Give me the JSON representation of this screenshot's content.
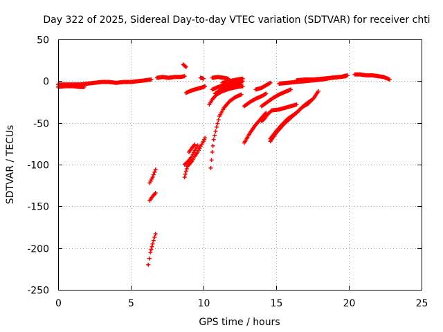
{
  "chart_data": {
    "type": "scatter",
    "title": "Day 322 of 2025, Sidereal Day-to-day VTEC variation (SDTVAR) for receiver chti",
    "xlabel": "GPS time / hours",
    "ylabel": "SDTVAR / TECUs",
    "xlim": [
      0,
      25
    ],
    "ylim": [
      -250,
      50
    ],
    "xticks": [
      0,
      5,
      10,
      15,
      20,
      25
    ],
    "yticks": [
      50,
      0,
      -50,
      -100,
      -150,
      -200,
      -250
    ],
    "grid": true,
    "marker": "+",
    "color": "#ff0000",
    "segments": [
      {
        "points": [
          [
            0.0,
            -4
          ],
          [
            0.5,
            -4
          ],
          [
            1.0,
            -4
          ],
          [
            1.5,
            -4
          ],
          [
            2.0,
            -3
          ],
          [
            2.5,
            -2
          ],
          [
            3.0,
            -1
          ],
          [
            3.5,
            -1
          ],
          [
            4.0,
            -2
          ],
          [
            4.5,
            -1
          ],
          [
            5.0,
            -1
          ],
          [
            5.5,
            0
          ],
          [
            6.0,
            1
          ],
          [
            6.4,
            2
          ]
        ]
      },
      {
        "points": [
          [
            0.0,
            -7
          ],
          [
            0.5,
            -6
          ],
          [
            1.0,
            -6
          ],
          [
            1.5,
            -7
          ],
          [
            1.8,
            -7
          ]
        ]
      },
      {
        "points": [
          [
            6.8,
            4
          ],
          [
            7.2,
            5
          ],
          [
            7.6,
            4
          ],
          [
            8.0,
            5
          ],
          [
            8.4,
            5
          ],
          [
            8.7,
            6
          ]
        ]
      },
      {
        "points": [
          [
            8.6,
            20
          ],
          [
            8.8,
            17
          ]
        ]
      },
      {
        "points": [
          [
            8.8,
            -14
          ],
          [
            9.2,
            -11
          ],
          [
            9.6,
            -9
          ],
          [
            10.0,
            -7
          ],
          [
            10.1,
            -6
          ]
        ]
      },
      {
        "points": [
          [
            9.8,
            4
          ],
          [
            10.0,
            3
          ]
        ]
      },
      {
        "points": [
          [
            10.6,
            4
          ],
          [
            11.0,
            5
          ],
          [
            11.4,
            4
          ],
          [
            11.7,
            3
          ]
        ]
      },
      {
        "points": [
          [
            10.5,
            -104
          ],
          [
            10.6,
            -85
          ],
          [
            10.7,
            -70
          ],
          [
            10.9,
            -55
          ],
          [
            11.1,
            -42
          ],
          [
            11.4,
            -32
          ],
          [
            11.8,
            -24
          ],
          [
            12.2,
            -19
          ],
          [
            12.6,
            -16
          ]
        ]
      },
      {
        "points": [
          [
            10.4,
            -28
          ],
          [
            10.6,
            -22
          ],
          [
            10.9,
            -16
          ],
          [
            11.3,
            -12
          ],
          [
            11.8,
            -9
          ],
          [
            12.3,
            -7
          ],
          [
            12.7,
            -6
          ]
        ]
      },
      {
        "points": [
          [
            10.8,
            -15
          ],
          [
            11.2,
            -10
          ],
          [
            11.7,
            -6
          ],
          [
            12.2,
            -3
          ],
          [
            12.6,
            -2
          ]
        ]
      },
      {
        "points": [
          [
            10.6,
            -10
          ],
          [
            11.0,
            -7
          ],
          [
            11.5,
            -4
          ],
          [
            12.0,
            -2
          ],
          [
            12.7,
            0
          ]
        ]
      },
      {
        "points": [
          [
            11.3,
            -2
          ],
          [
            11.8,
            0
          ],
          [
            12.3,
            2
          ],
          [
            12.7,
            3
          ]
        ]
      },
      {
        "points": [
          [
            12.8,
            -74
          ],
          [
            13.2,
            -62
          ],
          [
            13.6,
            -52
          ],
          [
            14.0,
            -44
          ],
          [
            14.3,
            -38
          ]
        ]
      },
      {
        "points": [
          [
            12.8,
            -30
          ],
          [
            13.2,
            -25
          ],
          [
            13.6,
            -21
          ],
          [
            14.0,
            -18
          ],
          [
            14.3,
            -15
          ]
        ]
      },
      {
        "points": [
          [
            13.6,
            -10
          ],
          [
            14.0,
            -8
          ],
          [
            14.4,
            -4
          ],
          [
            14.6,
            -2
          ]
        ]
      },
      {
        "points": [
          [
            14.0,
            -30
          ],
          [
            14.4,
            -25
          ],
          [
            14.8,
            -20
          ],
          [
            15.2,
            -16
          ],
          [
            15.6,
            -13
          ],
          [
            16.0,
            -10
          ]
        ]
      },
      {
        "points": [
          [
            14.6,
            -72
          ],
          [
            15.0,
            -62
          ],
          [
            15.5,
            -52
          ],
          [
            16.0,
            -44
          ],
          [
            16.5,
            -36
          ],
          [
            17.0,
            -28
          ],
          [
            17.4,
            -23
          ]
        ]
      },
      {
        "points": [
          [
            14.0,
            -48
          ],
          [
            14.2,
            -45
          ],
          [
            14.4,
            -40
          ],
          [
            14.7,
            -35
          ],
          [
            15.2,
            -34
          ],
          [
            15.8,
            -31
          ],
          [
            16.4,
            -28
          ]
        ]
      },
      {
        "points": [
          [
            14.6,
            -69
          ],
          [
            15.0,
            -60
          ],
          [
            15.4,
            -52
          ],
          [
            15.8,
            -45
          ],
          [
            16.4,
            -38
          ],
          [
            16.8,
            -31
          ],
          [
            17.2,
            -27
          ],
          [
            17.6,
            -20
          ],
          [
            17.9,
            -12
          ]
        ]
      },
      {
        "points": [
          [
            15.2,
            -3
          ],
          [
            15.8,
            -2
          ],
          [
            16.4,
            -1
          ],
          [
            17.0,
            0
          ],
          [
            17.6,
            1
          ],
          [
            18.2,
            2
          ],
          [
            18.8,
            4
          ],
          [
            19.4,
            5
          ],
          [
            19.8,
            6
          ]
        ]
      },
      {
        "points": [
          [
            16.4,
            1
          ],
          [
            17.0,
            2
          ],
          [
            17.6,
            2
          ],
          [
            18.2,
            3
          ],
          [
            18.8,
            4
          ],
          [
            19.4,
            5
          ],
          [
            19.9,
            7
          ]
        ]
      },
      {
        "points": [
          [
            6.3,
            -122
          ],
          [
            6.5,
            -115
          ],
          [
            6.7,
            -106
          ]
        ]
      },
      {
        "points": [
          [
            6.3,
            -143
          ],
          [
            6.5,
            -138
          ],
          [
            6.7,
            -134
          ]
        ]
      },
      {
        "points": [
          [
            6.2,
            -220
          ],
          [
            6.35,
            -205
          ],
          [
            6.5,
            -195
          ],
          [
            6.7,
            -183
          ]
        ]
      },
      {
        "points": [
          [
            8.7,
            -115
          ],
          [
            8.8,
            -108
          ],
          [
            8.9,
            -102
          ],
          [
            9.2,
            -96
          ],
          [
            9.4,
            -90
          ],
          [
            9.6,
            -85
          ],
          [
            9.8,
            -78
          ],
          [
            10.0,
            -72
          ],
          [
            10.1,
            -68
          ]
        ]
      },
      {
        "points": [
          [
            8.7,
            -100
          ],
          [
            9.0,
            -95
          ],
          [
            9.2,
            -90
          ],
          [
            9.4,
            -83
          ],
          [
            9.6,
            -77
          ]
        ]
      },
      {
        "points": [
          [
            9.0,
            -85
          ],
          [
            9.2,
            -80
          ],
          [
            9.4,
            -76
          ]
        ]
      },
      {
        "points": [
          [
            20.4,
            8
          ],
          [
            20.8,
            8
          ],
          [
            21.2,
            7
          ],
          [
            21.6,
            7
          ],
          [
            22.0,
            6
          ],
          [
            22.4,
            5
          ],
          [
            22.8,
            2
          ]
        ]
      }
    ]
  }
}
